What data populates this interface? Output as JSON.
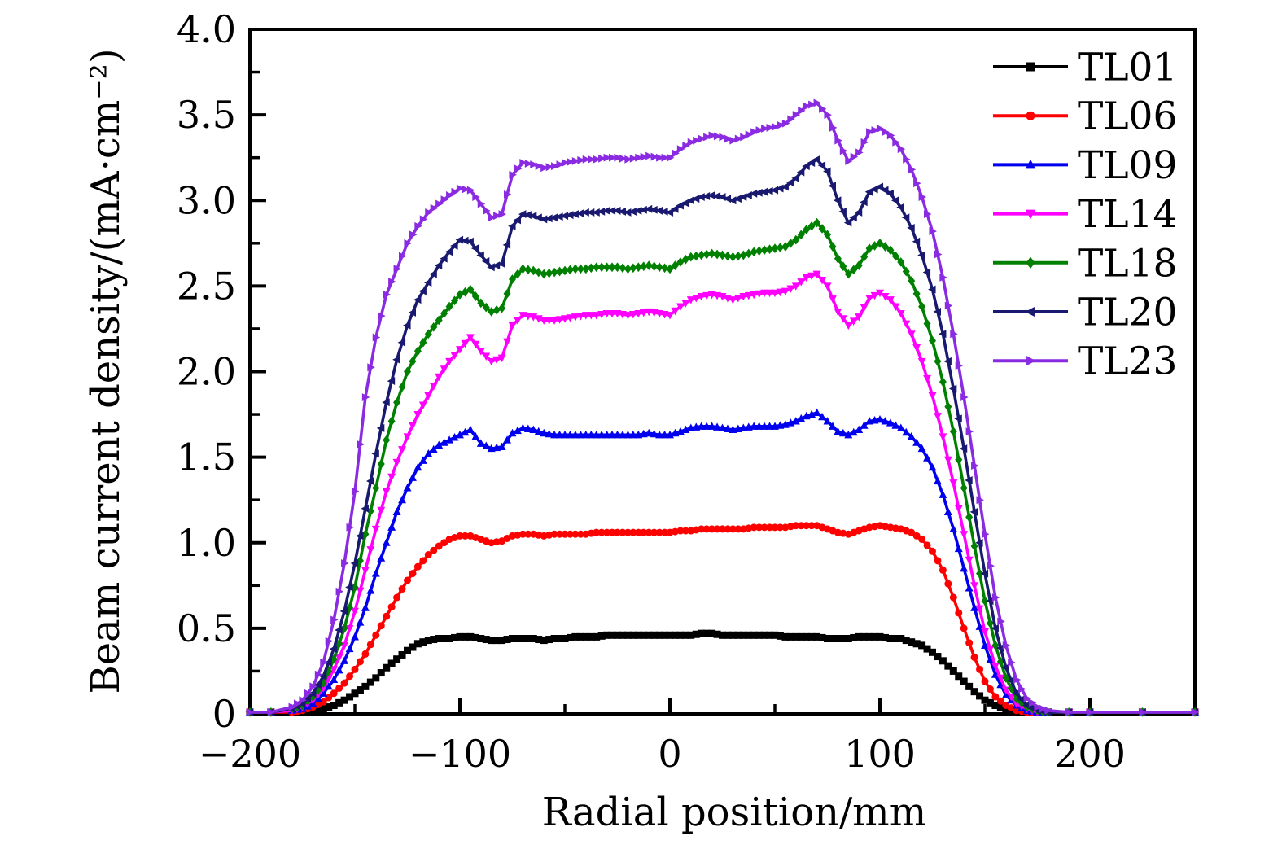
{
  "chart_data": {
    "type": "line",
    "title": "",
    "xlabel": "Radial position/mm",
    "ylabel": "Beam current density/(mA·cm⁻²)",
    "xlim": [
      -200,
      250
    ],
    "ylim": [
      0,
      4.0
    ],
    "grid": false,
    "legend_position": "top-right-inside",
    "x_major_ticks": [
      -200,
      -100,
      0,
      100,
      200
    ],
    "x_tick_labels": [
      "−200",
      "−100",
      "0",
      "100",
      "200"
    ],
    "x_minor_ticks": [
      -150,
      -50,
      50,
      150,
      250
    ],
    "y_major_ticks": [
      0,
      0.5,
      1.0,
      1.5,
      2.0,
      2.5,
      3.0,
      3.5,
      4.0
    ],
    "y_tick_labels": [
      "0",
      "0.5",
      "1.0",
      "1.5",
      "2.0",
      "2.5",
      "3.0",
      "3.5",
      "4.0"
    ],
    "y_minor_ticks": [
      0.25,
      0.75,
      1.25,
      1.75,
      2.25,
      2.75,
      3.25,
      3.75
    ],
    "x": [
      -200,
      -190,
      -180,
      -175,
      -170,
      -165,
      -160,
      -155,
      -150,
      -145,
      -140,
      -135,
      -130,
      -125,
      -120,
      -115,
      -110,
      -105,
      -100,
      -95,
      -90,
      -85,
      -80,
      -75,
      -70,
      -65,
      -60,
      -55,
      -50,
      -45,
      -40,
      -35,
      -30,
      -25,
      -20,
      -15,
      -10,
      -5,
      0,
      5,
      10,
      15,
      20,
      25,
      30,
      35,
      40,
      45,
      50,
      55,
      60,
      65,
      70,
      75,
      80,
      85,
      90,
      95,
      100,
      105,
      110,
      115,
      120,
      125,
      130,
      135,
      140,
      145,
      150,
      155,
      160,
      165,
      170,
      175,
      180,
      190,
      200,
      225,
      250
    ],
    "series": [
      {
        "name": "TL01",
        "color": "#000000",
        "marker": "square",
        "values": [
          0.01,
          0.01,
          0.01,
          0.01,
          0.02,
          0.03,
          0.05,
          0.08,
          0.12,
          0.16,
          0.21,
          0.27,
          0.32,
          0.37,
          0.41,
          0.43,
          0.44,
          0.44,
          0.45,
          0.45,
          0.44,
          0.43,
          0.43,
          0.44,
          0.44,
          0.44,
          0.43,
          0.44,
          0.44,
          0.45,
          0.45,
          0.45,
          0.46,
          0.46,
          0.46,
          0.46,
          0.46,
          0.46,
          0.46,
          0.46,
          0.46,
          0.47,
          0.47,
          0.46,
          0.46,
          0.46,
          0.46,
          0.46,
          0.46,
          0.45,
          0.45,
          0.45,
          0.45,
          0.44,
          0.44,
          0.44,
          0.45,
          0.45,
          0.45,
          0.44,
          0.44,
          0.42,
          0.4,
          0.36,
          0.31,
          0.25,
          0.19,
          0.13,
          0.08,
          0.05,
          0.03,
          0.02,
          0.01,
          0.01,
          0.01,
          0.01,
          0.01,
          0.01,
          0.01
        ]
      },
      {
        "name": "TL06",
        "color": "#ff0000",
        "marker": "circle",
        "values": [
          0.01,
          0.01,
          0.01,
          0.02,
          0.04,
          0.07,
          0.12,
          0.18,
          0.26,
          0.35,
          0.46,
          0.57,
          0.68,
          0.78,
          0.86,
          0.93,
          0.98,
          1.02,
          1.04,
          1.04,
          1.02,
          1.0,
          1.01,
          1.04,
          1.05,
          1.05,
          1.04,
          1.05,
          1.05,
          1.05,
          1.05,
          1.06,
          1.06,
          1.06,
          1.06,
          1.06,
          1.06,
          1.06,
          1.06,
          1.07,
          1.07,
          1.08,
          1.08,
          1.08,
          1.08,
          1.08,
          1.09,
          1.09,
          1.09,
          1.09,
          1.1,
          1.1,
          1.1,
          1.08,
          1.06,
          1.05,
          1.07,
          1.09,
          1.1,
          1.09,
          1.08,
          1.06,
          1.02,
          0.95,
          0.84,
          0.68,
          0.5,
          0.33,
          0.19,
          0.1,
          0.05,
          0.02,
          0.01,
          0.01,
          0.01,
          0.01,
          0.01,
          0.01,
          0.01
        ]
      },
      {
        "name": "TL09",
        "color": "#0000ee",
        "marker": "triangle-up",
        "values": [
          0.01,
          0.01,
          0.02,
          0.03,
          0.06,
          0.12,
          0.2,
          0.31,
          0.45,
          0.62,
          0.82,
          1.0,
          1.18,
          1.32,
          1.44,
          1.52,
          1.57,
          1.6,
          1.63,
          1.66,
          1.58,
          1.55,
          1.56,
          1.64,
          1.67,
          1.66,
          1.64,
          1.63,
          1.63,
          1.63,
          1.63,
          1.63,
          1.63,
          1.63,
          1.63,
          1.63,
          1.64,
          1.63,
          1.63,
          1.65,
          1.67,
          1.68,
          1.68,
          1.67,
          1.66,
          1.67,
          1.68,
          1.68,
          1.68,
          1.69,
          1.71,
          1.74,
          1.76,
          1.71,
          1.65,
          1.63,
          1.66,
          1.71,
          1.72,
          1.7,
          1.67,
          1.62,
          1.55,
          1.44,
          1.28,
          1.08,
          0.85,
          0.62,
          0.4,
          0.23,
          0.11,
          0.05,
          0.02,
          0.01,
          0.01,
          0.01,
          0.01,
          0.01,
          0.01
        ]
      },
      {
        "name": "TL14",
        "color": "#ff00ff",
        "marker": "triangle-down",
        "values": [
          0.01,
          0.01,
          0.02,
          0.04,
          0.08,
          0.15,
          0.26,
          0.4,
          0.6,
          0.84,
          1.08,
          1.3,
          1.47,
          1.62,
          1.75,
          1.86,
          1.97,
          2.06,
          2.13,
          2.2,
          2.12,
          2.06,
          2.08,
          2.27,
          2.33,
          2.32,
          2.3,
          2.3,
          2.31,
          2.32,
          2.33,
          2.33,
          2.34,
          2.34,
          2.33,
          2.34,
          2.35,
          2.34,
          2.33,
          2.38,
          2.42,
          2.44,
          2.45,
          2.44,
          2.42,
          2.44,
          2.45,
          2.46,
          2.46,
          2.47,
          2.5,
          2.55,
          2.57,
          2.5,
          2.35,
          2.27,
          2.32,
          2.43,
          2.46,
          2.42,
          2.34,
          2.22,
          2.06,
          1.86,
          1.62,
          1.35,
          1.05,
          0.75,
          0.48,
          0.28,
          0.14,
          0.06,
          0.03,
          0.01,
          0.01,
          0.01,
          0.01,
          0.01,
          0.01
        ]
      },
      {
        "name": "TL18",
        "color": "#008000",
        "marker": "diamond",
        "values": [
          0.01,
          0.01,
          0.03,
          0.05,
          0.1,
          0.18,
          0.32,
          0.5,
          0.74,
          1.05,
          1.32,
          1.6,
          1.82,
          2.0,
          2.12,
          2.22,
          2.3,
          2.38,
          2.45,
          2.48,
          2.4,
          2.35,
          2.37,
          2.54,
          2.6,
          2.59,
          2.57,
          2.58,
          2.59,
          2.6,
          2.6,
          2.61,
          2.61,
          2.61,
          2.6,
          2.61,
          2.62,
          2.61,
          2.6,
          2.64,
          2.67,
          2.68,
          2.69,
          2.68,
          2.67,
          2.68,
          2.7,
          2.71,
          2.72,
          2.73,
          2.77,
          2.83,
          2.87,
          2.8,
          2.66,
          2.57,
          2.62,
          2.72,
          2.75,
          2.71,
          2.64,
          2.53,
          2.38,
          2.18,
          1.94,
          1.65,
          1.32,
          0.98,
          0.66,
          0.4,
          0.21,
          0.09,
          0.04,
          0.02,
          0.01,
          0.01,
          0.01,
          0.01,
          0.01
        ]
      },
      {
        "name": "TL20",
        "color": "#191970",
        "marker": "triangle-left",
        "values": [
          0.01,
          0.01,
          0.03,
          0.06,
          0.12,
          0.22,
          0.38,
          0.6,
          0.88,
          1.2,
          1.52,
          1.82,
          2.07,
          2.27,
          2.42,
          2.52,
          2.62,
          2.7,
          2.77,
          2.76,
          2.68,
          2.61,
          2.63,
          2.85,
          2.92,
          2.91,
          2.89,
          2.9,
          2.91,
          2.92,
          2.93,
          2.93,
          2.94,
          2.94,
          2.93,
          2.94,
          2.95,
          2.94,
          2.93,
          2.97,
          3.0,
          3.02,
          3.03,
          3.02,
          3.0,
          3.02,
          3.04,
          3.05,
          3.06,
          3.08,
          3.13,
          3.2,
          3.24,
          3.17,
          3.0,
          2.87,
          2.93,
          3.05,
          3.08,
          3.04,
          2.96,
          2.84,
          2.68,
          2.48,
          2.22,
          1.9,
          1.55,
          1.18,
          0.82,
          0.5,
          0.27,
          0.12,
          0.05,
          0.02,
          0.01,
          0.01,
          0.01,
          0.01,
          0.01
        ]
      },
      {
        "name": "TL23",
        "color": "#8a2be2",
        "marker": "triangle-right",
        "values": [
          0.01,
          0.01,
          0.04,
          0.08,
          0.16,
          0.3,
          0.55,
          0.88,
          1.3,
          1.85,
          2.2,
          2.45,
          2.6,
          2.75,
          2.85,
          2.93,
          2.98,
          3.03,
          3.07,
          3.06,
          2.98,
          2.9,
          2.92,
          3.15,
          3.22,
          3.21,
          3.19,
          3.2,
          3.22,
          3.23,
          3.24,
          3.24,
          3.25,
          3.25,
          3.24,
          3.25,
          3.26,
          3.25,
          3.25,
          3.3,
          3.34,
          3.36,
          3.38,
          3.37,
          3.35,
          3.37,
          3.4,
          3.42,
          3.43,
          3.45,
          3.5,
          3.55,
          3.57,
          3.5,
          3.35,
          3.23,
          3.28,
          3.4,
          3.42,
          3.38,
          3.3,
          3.18,
          3.02,
          2.82,
          2.55,
          2.22,
          1.85,
          1.45,
          1.05,
          0.68,
          0.4,
          0.2,
          0.09,
          0.04,
          0.02,
          0.01,
          0.01,
          0.01,
          0.01
        ]
      }
    ]
  }
}
